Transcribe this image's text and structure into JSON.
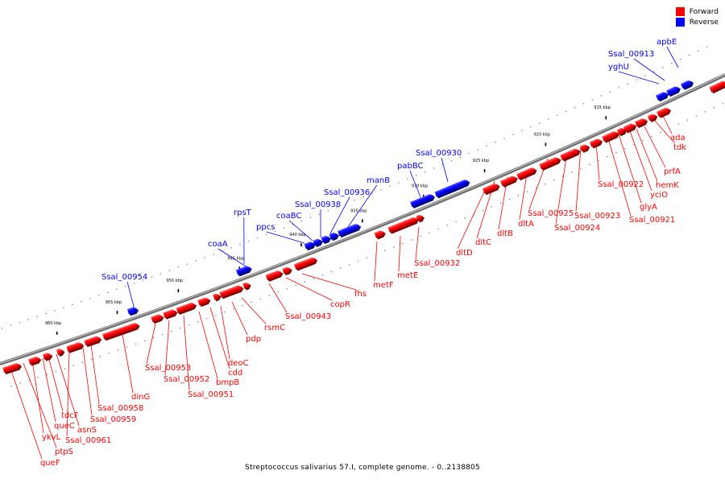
{
  "legend": [
    {
      "label": "Forward",
      "color": "#ff0000"
    },
    {
      "label": "Reverse",
      "color": "#0000ff"
    }
  ],
  "caption": "Streptococcus salivarius 57.I, complete genome. - 0..2138805",
  "colors": {
    "forward": "#ff0000",
    "reverse": "#0000ff",
    "backbone": "#7f7f7f"
  },
  "ticks": [
    "915 kbp",
    "920 kbp",
    "925 kbp",
    "930 kbp",
    "935 kbp",
    "940 kbp",
    "945 kbp",
    "950 kbp",
    "955 kbp",
    "960 kbp"
  ],
  "reverse_genes": [
    "apbE",
    "Ssal_00913",
    "yghU",
    "Ssal_00930",
    "pabBC",
    "manB",
    "Ssal_00936",
    "Ssal_00938",
    "coaBC",
    "ppcs",
    "coaA",
    "rpsT",
    "Ssal_00954"
  ],
  "forward_genes": [
    "ada",
    "tdk",
    "prfA",
    "hemK",
    "yciO",
    "glyA",
    "Ssal_00921",
    "Ssal_00922",
    "Ssal_00923",
    "Ssal_00924",
    "Ssal_00925",
    "dltA",
    "dltB",
    "dltC",
    "dltD",
    "Ssal_00932",
    "metE",
    "metF",
    "fhs",
    "copR",
    "Ssal_00943",
    "rsmC",
    "pdp",
    "deoC",
    "cdd",
    "bmpB",
    "Ssal_00951",
    "Ssal_00952",
    "Ssal_00953",
    "dinG",
    "Ssal_00958",
    "Ssal_00959",
    "Ssal_00961",
    "asnS",
    "tdcF",
    "queC",
    "ykvL",
    "ptpS",
    "queF"
  ]
}
